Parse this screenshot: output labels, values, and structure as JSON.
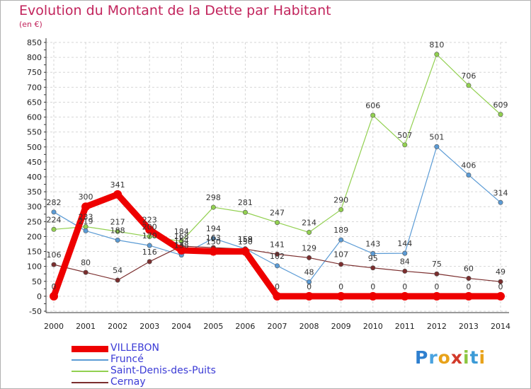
{
  "header": {
    "title": "Evolution du Montant de la Dette par Habitant",
    "subtitle": "(en €)"
  },
  "logo": {
    "letters": [
      "P",
      "r",
      "o",
      "x",
      "i",
      "t",
      "i"
    ],
    "colors": [
      "#2e7fcf",
      "#4aa3e0",
      "#e8a21a",
      "#d23a2a",
      "#8cc63f",
      "#3b9ad6",
      "#e8a21a"
    ]
  },
  "chart_data": {
    "type": "line",
    "title": "Evolution du Montant de la Dette par Habitant",
    "subtitle": "(en €)",
    "xlabel": "",
    "ylabel": "",
    "x": [
      2000,
      2001,
      2002,
      2003,
      2004,
      2005,
      2006,
      2007,
      2008,
      2009,
      2010,
      2011,
      2012,
      2013,
      2014
    ],
    "yticks": [
      -50,
      0,
      50,
      100,
      150,
      200,
      250,
      300,
      350,
      400,
      450,
      500,
      550,
      600,
      650,
      700,
      750,
      800,
      850
    ],
    "ylim": [
      -50,
      850
    ],
    "grid": true,
    "legend_position": "bottom-left",
    "series": [
      {
        "name": "VILLEBON",
        "color": "#ee0000",
        "values": [
          0,
          300,
          341,
          223,
          154,
          150,
          150,
          0,
          0,
          0,
          0,
          0,
          0,
          0,
          0
        ],
        "labels": [
          "0",
          "300",
          "341",
          "223",
          "154",
          "150",
          "150",
          "0",
          "0",
          "0",
          "0",
          "0",
          "0",
          "0",
          "0"
        ]
      },
      {
        "name": "Fruncé",
        "color": "#5b9bd5",
        "values": [
          282,
          219,
          188,
          170,
          138,
          194,
          159,
          102,
          48,
          189,
          143,
          144,
          501,
          406,
          314
        ],
        "labels": [
          "282",
          "219",
          "188",
          "170",
          "138",
          "194",
          "159",
          "102",
          "48",
          "189",
          "143",
          "144",
          "501",
          "406",
          "314"
        ]
      },
      {
        "name": "Saint-Denis-des-Puits",
        "color": "#92d050",
        "values": [
          224,
          233,
          217,
          200,
          184,
          298,
          281,
          247,
          214,
          290,
          606,
          507,
          810,
          706,
          609
        ],
        "labels": [
          "224",
          "233",
          "217",
          "200",
          "184",
          "298",
          "281",
          "247",
          "214",
          "290",
          "606",
          "507",
          "810",
          "706",
          "609"
        ]
      },
      {
        "name": "Cernay",
        "color": "#7b2e2e",
        "values": [
          106,
          80,
          54,
          116,
          168,
          163,
          158,
          141,
          129,
          107,
          95,
          84,
          75,
          60,
          49
        ],
        "labels": [
          "106",
          "80",
          "54",
          "116",
          "168",
          "163",
          "158",
          "141",
          "129",
          "107",
          "95",
          "84",
          "75",
          "60",
          "49"
        ]
      }
    ]
  }
}
